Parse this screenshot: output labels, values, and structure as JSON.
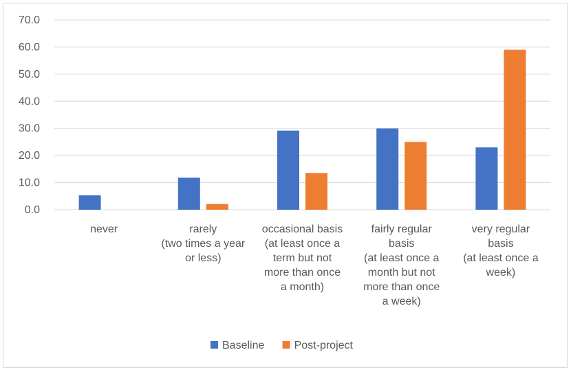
{
  "chart_data": {
    "type": "bar",
    "title": "",
    "xlabel": "",
    "ylabel": "",
    "ylim": [
      0,
      70
    ],
    "yticks": [
      "0.0",
      "10.0",
      "20.0",
      "30.0",
      "40.0",
      "50.0",
      "60.0",
      "70.0"
    ],
    "grid": true,
    "legend_position": "bottom",
    "categories": [
      [
        "never"
      ],
      [
        "rarely",
        "(two times a year",
        "or less)"
      ],
      [
        "occasional basis",
        "(at least once a",
        "term but not",
        "more than once",
        "a month)"
      ],
      [
        "fairly regular",
        "basis",
        "(at least once a",
        "month but not",
        "more than once",
        "a week)"
      ],
      [
        "very regular",
        "basis",
        "(at least once a",
        "week)"
      ]
    ],
    "series": [
      {
        "name": "Baseline",
        "color": "#4472C4",
        "values": [
          5.3,
          11.8,
          29.2,
          30.0,
          23.0
        ]
      },
      {
        "name": "Post-project",
        "color": "#ED7D31",
        "values": [
          0.0,
          2.1,
          13.5,
          25.0,
          59.0
        ]
      }
    ]
  }
}
